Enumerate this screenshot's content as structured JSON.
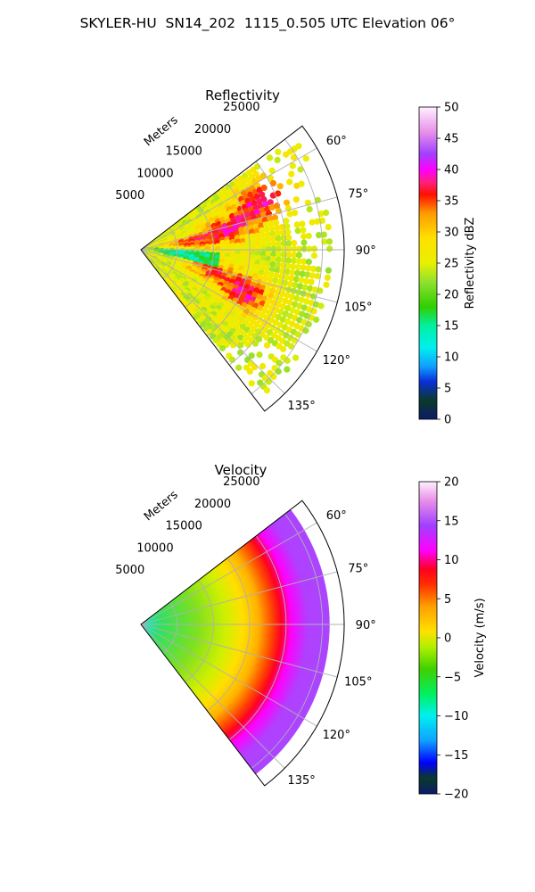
{
  "suptitle": "SKYLER-HU  SN14_202  1115_0.505 UTC Elevation 06°",
  "chart_data": [
    {
      "type": "heatmap",
      "projection": "polar-sector",
      "title": "Reflectivity",
      "range_label": "Meters",
      "range_ticks": [
        5000,
        10000,
        15000,
        20000,
        25000
      ],
      "range_tick_labels": [
        "5000",
        "10000",
        "15000",
        "20000",
        "25000"
      ],
      "range_max": 28000,
      "azimuth_range_deg": [
        52.5,
        142.5
      ],
      "azimuth_ticks": [
        60,
        75,
        90,
        105,
        120,
        135
      ],
      "azimuth_tick_labels": [
        "60°",
        "75°",
        "90°",
        "105°",
        "120°",
        "135°"
      ],
      "grid": true,
      "colorbar": {
        "label": "Reflectivity dBZ",
        "range": [
          0,
          50
        ],
        "ticks": [
          0,
          5,
          10,
          15,
          20,
          25,
          30,
          35,
          40,
          45,
          50
        ],
        "tick_labels": [
          "0",
          "5",
          "10",
          "15",
          "20",
          "25",
          "30",
          "35",
          "40",
          "45",
          "50"
        ]
      },
      "features": [
        {
          "azimuth": 68,
          "range": 18000,
          "value": 37
        },
        {
          "azimuth": 78,
          "range": 12000,
          "value": 36
        },
        {
          "azimuth": 85,
          "range": 6000,
          "value": 34
        },
        {
          "azimuth": 97,
          "range": 5000,
          "value": 13
        },
        {
          "azimuth": 113,
          "range": 15500,
          "value": 36
        },
        {
          "azimuth": 106,
          "range": 9000,
          "value": 34
        }
      ]
    },
    {
      "type": "heatmap",
      "projection": "polar-sector",
      "title": "Velocity",
      "range_label": "Meters",
      "range_ticks": [
        5000,
        10000,
        15000,
        20000,
        25000
      ],
      "range_tick_labels": [
        "5000",
        "10000",
        "15000",
        "20000",
        "25000"
      ],
      "range_max": 28000,
      "azimuth_range_deg": [
        52.5,
        142.5
      ],
      "azimuth_ticks": [
        60,
        75,
        90,
        105,
        120,
        135
      ],
      "azimuth_tick_labels": [
        "60°",
        "75°",
        "90°",
        "105°",
        "120°",
        "135°"
      ],
      "grid": true,
      "colorbar": {
        "label": "Velocity (m/s)",
        "range": [
          -20,
          20
        ],
        "ticks": [
          -20,
          -15,
          -10,
          -5,
          0,
          5,
          10,
          15,
          20
        ],
        "tick_labels": [
          "−20",
          "−15",
          "−10",
          "−5",
          "0",
          "5",
          "10",
          "15",
          "20"
        ]
      },
      "radial_profile": [
        {
          "range": 1500,
          "value": -11
        },
        {
          "range": 5000,
          "value": -6
        },
        {
          "range": 10000,
          "value": -2
        },
        {
          "range": 13000,
          "value": 2
        },
        {
          "range": 16000,
          "value": 6
        },
        {
          "range": 18000,
          "value": 10
        },
        {
          "range": 21000,
          "value": 15
        }
      ]
    }
  ]
}
